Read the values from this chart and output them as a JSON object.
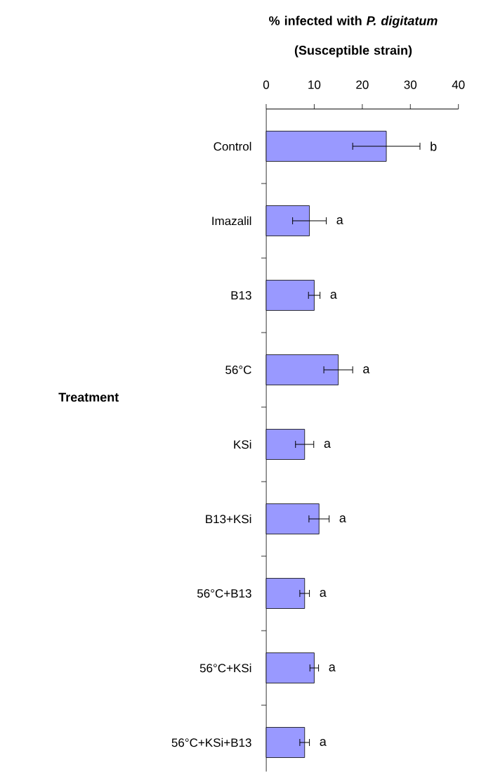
{
  "chart_data": {
    "type": "bar",
    "orientation": "horizontal",
    "xlabel": "% infected with *P. digitatum* (Susceptible strain)",
    "ylabel": "Treatment",
    "categories": [
      "Control",
      "Imazalil",
      "B13",
      "56°C",
      "KSi",
      "B13+KSi",
      "56°C+B13",
      "56°C+KSi",
      "56°C+KSi+B13"
    ],
    "values": [
      25,
      9,
      10,
      15,
      8,
      11,
      8,
      10,
      8
    ],
    "errors": [
      7,
      3.5,
      1.2,
      3,
      1.9,
      2.1,
      1,
      0.9,
      1
    ],
    "color": "#9999ff",
    "xlim": [
      0,
      40
    ],
    "xticks": [
      0,
      10,
      20,
      30,
      40
    ],
    "grid": false,
    "annotations": [
      "b",
      "a",
      "a",
      "a",
      "a",
      "a",
      "a",
      "a",
      "a"
    ]
  }
}
